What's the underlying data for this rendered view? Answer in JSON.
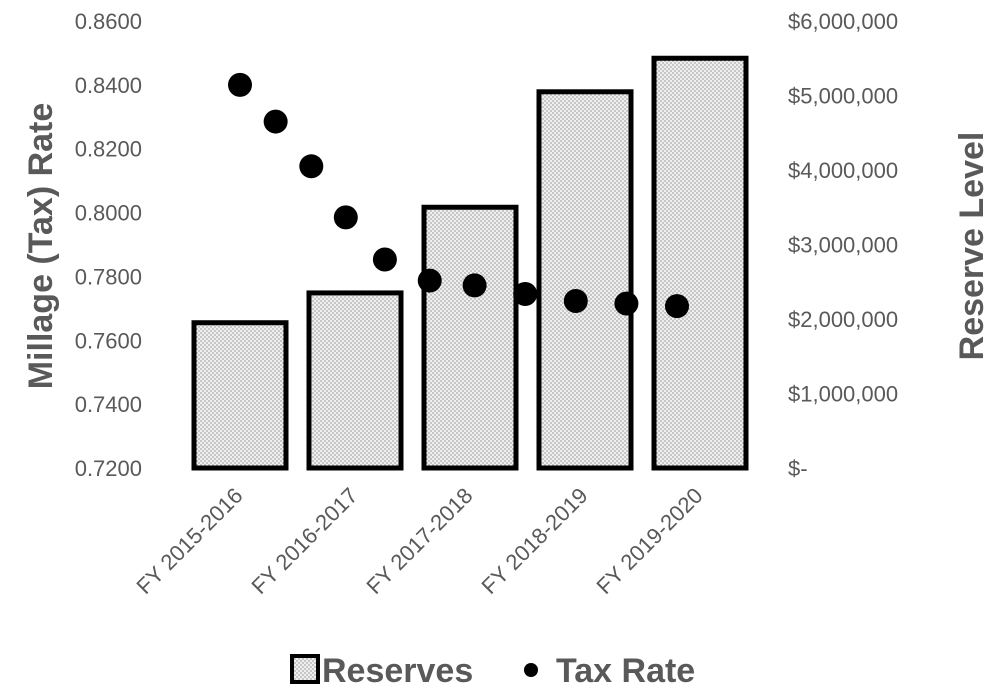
{
  "chart_data": {
    "type": "bar",
    "categories": [
      "FY 2015-2016",
      "FY 2016-2017",
      "FY 2017-2018",
      "FY 2018-2019",
      "FY 2019-2020"
    ],
    "series": [
      {
        "name": "Reserves",
        "type": "bar",
        "axis": "right",
        "x": [
          "FY 2015-2016",
          "FY 2016-2017",
          "FY 2017-2018",
          "FY 2018-2019",
          "FY 2019-2020"
        ],
        "values": [
          1950000,
          2350000,
          3500000,
          5050000,
          5500000
        ]
      },
      {
        "name": "Tax Rate",
        "type": "scatter",
        "axis": "left",
        "x": [
          1,
          1.31,
          1.62,
          1.92,
          2.26,
          2.65,
          3.04,
          3.48,
          3.92,
          4.36,
          4.8
        ],
        "values": [
          0.84,
          0.8285,
          0.8145,
          0.7985,
          0.7853,
          0.7787,
          0.7772,
          0.7745,
          0.7723,
          0.7715,
          0.7707
        ]
      }
    ],
    "y_left": {
      "label": "Millage (Tax) Rate",
      "ylim": [
        0.72,
        0.86
      ],
      "ticks": [
        "0.7200",
        "0.7400",
        "0.7600",
        "0.7800",
        "0.8000",
        "0.8200",
        "0.8400",
        "0.8600"
      ]
    },
    "y_right": {
      "label": "Reserve Level",
      "ylim": [
        0,
        6000000
      ],
      "ticks": [
        "$-",
        "$1,000,000",
        "$2,000,000",
        "$3,000,000",
        "$4,000,000",
        "$5,000,000",
        "$6,000,000"
      ]
    },
    "grid": false,
    "legend": {
      "position": "bottom",
      "items": [
        {
          "label": "Reserves",
          "marker": "hatched-square"
        },
        {
          "label": "Tax Rate",
          "marker": "dot"
        }
      ]
    },
    "colors": {
      "bar_fill": "#ececec",
      "bar_stroke": "#000000",
      "dot": "#000000",
      "text": "#595959"
    }
  }
}
